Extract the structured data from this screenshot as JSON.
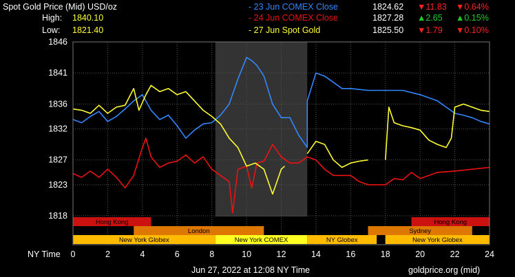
{
  "header": {
    "title": "Spot Gold Price (Mid) USD/oz",
    "high_label": "High:",
    "high_value": "1840.10",
    "low_label": "Low:",
    "low_value": "1821.40"
  },
  "legend": [
    {
      "label": "- 23 Jun COMEX Close",
      "price": "1824.62",
      "change": "11.83",
      "pct": "0.64%",
      "direction": "down",
      "color": "#3388ff"
    },
    {
      "label": "- 24 Jun COMEX Close",
      "price": "1827.28",
      "change": "2.65",
      "pct": "0.15%",
      "direction": "up",
      "color": "#ee1111"
    },
    {
      "label": "- 27 Jun Spot Gold",
      "price": "1825.50",
      "change": "1.79",
      "pct": "0.10%",
      "direction": "down",
      "color": "#ffff33"
    }
  ],
  "colors": {
    "up_arrow": "#22cc22",
    "down_arrow": "#ff2222",
    "grid": "#555555",
    "comex_session": "#333333",
    "hong_kong": "#cc1111",
    "london": "#dd7700",
    "new_york": "#ffbb00",
    "session_text": "#000000"
  },
  "footer": {
    "axis_label": "NY Time",
    "timestamp": "Jun 27, 2022 at 12:08 NY Time",
    "source": "goldprice.org (mid)"
  },
  "sessions": [
    {
      "name": "Hong Kong",
      "start": 0,
      "end": 4.5,
      "row": 0,
      "color": "#cc1111"
    },
    {
      "name": "Hong Kong",
      "start": 19.5,
      "end": 24,
      "row": 0,
      "color": "#cc1111"
    },
    {
      "name": "London",
      "start": 3.5,
      "end": 11,
      "row": 1,
      "color": "#dd7700"
    },
    {
      "name": "Sydney",
      "start": 17,
      "end": 23,
      "row": 1,
      "color": "#dd7700"
    },
    {
      "name": "New York Globex",
      "start": 0,
      "end": 8.2,
      "row": 2,
      "color": "#ffbb00"
    },
    {
      "name": "New York COMEX",
      "start": 8.2,
      "end": 13.5,
      "row": 2,
      "color": "#ffff22"
    },
    {
      "name": "NY Globex",
      "start": 13.5,
      "end": 17.5,
      "row": 2,
      "color": "#ffbb00"
    },
    {
      "name": "New York Globex",
      "start": 18,
      "end": 24,
      "row": 2,
      "color": "#ffbb00"
    }
  ],
  "chart_data": {
    "type": "line",
    "xlabel": "NY Time",
    "ylabel": "",
    "xlim": [
      0,
      24
    ],
    "ylim": [
      1818,
      1846
    ],
    "xticks": [
      0,
      2,
      4,
      6,
      8,
      10,
      12,
      14,
      16,
      18,
      20,
      22,
      24
    ],
    "yticks": [
      1818,
      1823,
      1827,
      1832,
      1836,
      1841,
      1846
    ],
    "grid": true,
    "highlight_range": [
      8.2,
      13.5
    ],
    "series": [
      {
        "name": "23 Jun COMEX Close",
        "color": "#3388ff",
        "points": [
          [
            0,
            1833.5
          ],
          [
            0.5,
            1833
          ],
          [
            1,
            1834
          ],
          [
            1.5,
            1834.8
          ],
          [
            2,
            1833.2
          ],
          [
            2.5,
            1834
          ],
          [
            3,
            1835.2
          ],
          [
            3.5,
            1836.5
          ],
          [
            4,
            1837.5
          ],
          [
            4.5,
            1835
          ],
          [
            5,
            1833.5
          ],
          [
            5.5,
            1834.2
          ],
          [
            6,
            1832.5
          ],
          [
            6.5,
            1830.5
          ],
          [
            7,
            1831.8
          ],
          [
            7.5,
            1832.8
          ],
          [
            8,
            1833
          ],
          [
            8.5,
            1834.2
          ],
          [
            9,
            1836
          ],
          [
            9.5,
            1840
          ],
          [
            10,
            1843.5
          ],
          [
            10.3,
            1843
          ],
          [
            10.6,
            1842.2
          ],
          [
            11,
            1840.5
          ],
          [
            11.5,
            1836
          ],
          [
            12,
            1833.8
          ],
          [
            12.5,
            1833.8
          ],
          [
            13,
            1831
          ],
          [
            13.5,
            1829
          ],
          [
            13.5,
            1836.5
          ],
          [
            14,
            1841
          ],
          [
            14.5,
            1840.5
          ],
          [
            15,
            1839.5
          ],
          [
            15.5,
            1838.5
          ],
          [
            16,
            1838.5
          ],
          [
            17,
            1838.2
          ],
          [
            18,
            1838.2
          ],
          [
            19,
            1838.2
          ],
          [
            20,
            1837.5
          ],
          [
            21,
            1836.5
          ],
          [
            22,
            1834.5
          ],
          [
            22.5,
            1834.2
          ],
          [
            23,
            1833.8
          ],
          [
            23.5,
            1833.2
          ],
          [
            24,
            1832.8
          ]
        ]
      },
      {
        "name": "24 Jun COMEX Close",
        "color": "#ee1111",
        "points": [
          [
            0,
            1824.8
          ],
          [
            0.5,
            1824.2
          ],
          [
            1,
            1825.2
          ],
          [
            1.5,
            1824.2
          ],
          [
            2,
            1825.5
          ],
          [
            2.5,
            1824.2
          ],
          [
            3,
            1822.5
          ],
          [
            3.5,
            1824.5
          ],
          [
            4,
            1829
          ],
          [
            4.2,
            1830.5
          ],
          [
            4.5,
            1827.5
          ],
          [
            5,
            1825.8
          ],
          [
            5.5,
            1826.5
          ],
          [
            6,
            1826.8
          ],
          [
            6.5,
            1827.8
          ],
          [
            7,
            1826.5
          ],
          [
            7.5,
            1827.5
          ],
          [
            8,
            1825.5
          ],
          [
            8.5,
            1824.5
          ],
          [
            9,
            1823.5
          ],
          [
            9.2,
            1818.5
          ],
          [
            9.5,
            1825.5
          ],
          [
            10,
            1826
          ],
          [
            10.3,
            1822.5
          ],
          [
            10.6,
            1826.5
          ],
          [
            11,
            1826.8
          ],
          [
            11.5,
            1829.5
          ],
          [
            12,
            1827.5
          ],
          [
            12.5,
            1826.5
          ],
          [
            13,
            1826.5
          ],
          [
            13.5,
            1827.5
          ],
          [
            14,
            1827
          ],
          [
            14.5,
            1825.5
          ],
          [
            15,
            1824.5
          ],
          [
            15.5,
            1824.5
          ],
          [
            16,
            1824.5
          ],
          [
            16.5,
            1823.5
          ],
          [
            17,
            1823
          ],
          [
            18,
            1823
          ],
          [
            18.5,
            1824
          ],
          [
            19,
            1823.8
          ],
          [
            19.5,
            1825
          ],
          [
            20,
            1824
          ],
          [
            21,
            1825
          ],
          [
            22,
            1825.2
          ],
          [
            23,
            1825.5
          ],
          [
            24,
            1825.8
          ]
        ]
      },
      {
        "name": "27 Jun Spot Gold",
        "color": "#ffff33",
        "points": [
          [
            0,
            1835.2
          ],
          [
            0.5,
            1835
          ],
          [
            1,
            1834.5
          ],
          [
            1.5,
            1835.8
          ],
          [
            2,
            1834.5
          ],
          [
            2.5,
            1835.5
          ],
          [
            3,
            1835.8
          ],
          [
            3.5,
            1838.5
          ],
          [
            3.8,
            1835
          ],
          [
            4.2,
            1837.5
          ],
          [
            4.5,
            1839
          ],
          [
            5,
            1838
          ],
          [
            5.5,
            1838.5
          ],
          [
            6,
            1837.5
          ],
          [
            6.5,
            1838
          ],
          [
            7,
            1836.5
          ],
          [
            7.5,
            1835
          ],
          [
            8,
            1834
          ],
          [
            8.5,
            1832.8
          ],
          [
            9,
            1830.5
          ],
          [
            9.5,
            1829
          ],
          [
            10,
            1826
          ],
          [
            10.5,
            1826.5
          ],
          [
            11,
            1825.5
          ],
          [
            11.5,
            1821.5
          ],
          [
            12,
            1825.5
          ],
          [
            12.2,
            1826
          ]
        ]
      },
      {
        "name": "27 Jun Spot Gold (prior session)",
        "color": "#ffff33",
        "points": [
          [
            13.5,
            1828
          ],
          [
            14,
            1830
          ],
          [
            14.5,
            1829.5
          ],
          [
            15,
            1827
          ],
          [
            15.5,
            1825.8
          ],
          [
            16,
            1826.5
          ],
          [
            16.5,
            1826.8
          ],
          [
            17,
            1827
          ]
        ]
      },
      {
        "name": "27 Jun Spot Gold (current)",
        "color": "#ffff33",
        "points": [
          [
            18,
            1827
          ],
          [
            18.2,
            1835.5
          ],
          [
            18.5,
            1833
          ],
          [
            19,
            1832.5
          ],
          [
            19.5,
            1832.2
          ],
          [
            20,
            1831.8
          ],
          [
            20.5,
            1830.2
          ],
          [
            21,
            1829.5
          ],
          [
            21.5,
            1829
          ],
          [
            21.8,
            1830.5
          ],
          [
            22,
            1835.5
          ],
          [
            22.5,
            1836
          ],
          [
            23,
            1835.5
          ],
          [
            23.5,
            1835
          ],
          [
            24,
            1834.8
          ]
        ]
      }
    ]
  }
}
